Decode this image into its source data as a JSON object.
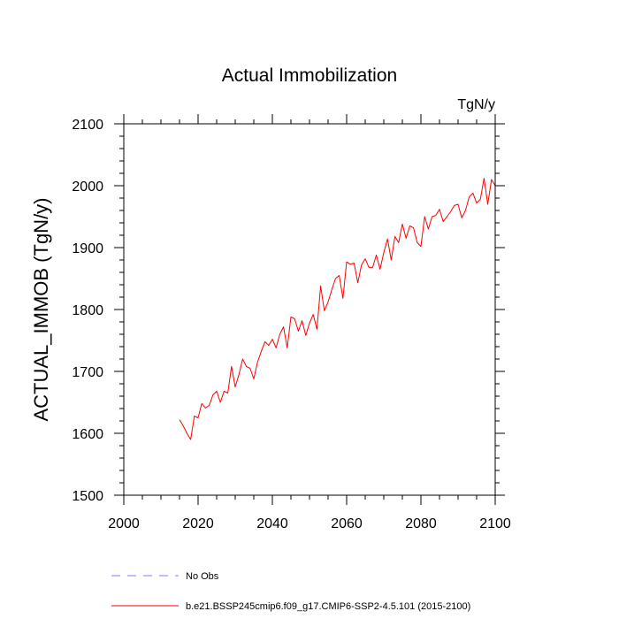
{
  "chart_data": {
    "type": "line",
    "title": "Actual Immobilization",
    "units": "TgN/y",
    "ylabel": "ACTUAL_IMMOB  (TgN/y)",
    "xlabel": "",
    "xlim": [
      2000,
      2100
    ],
    "ylim": [
      1500,
      2100
    ],
    "xticks": [
      2000,
      2020,
      2040,
      2060,
      2080,
      2100
    ],
    "yticks": [
      1500,
      1600,
      1700,
      1800,
      1900,
      2000,
      2100
    ],
    "xticklabels": [
      "2000",
      "2020",
      "2040",
      "2060",
      "2080",
      "2100"
    ],
    "yticklabels": [
      "1500",
      "1600",
      "1700",
      "1800",
      "1900",
      "2000",
      "2100"
    ],
    "grid": false,
    "series": [
      {
        "name": "b.e21.BSSP245cmip6.f09_g17.CMIP6-SSP2-4.5.101 (2015-2100)",
        "color": "#ff0000",
        "style": "solid",
        "x": [
          2015,
          2016,
          2017,
          2018,
          2019,
          2020,
          2021,
          2022,
          2023,
          2024,
          2025,
          2026,
          2027,
          2028,
          2029,
          2030,
          2031,
          2032,
          2033,
          2034,
          2035,
          2036,
          2037,
          2038,
          2039,
          2040,
          2041,
          2042,
          2043,
          2044,
          2045,
          2046,
          2047,
          2048,
          2049,
          2050,
          2051,
          2052,
          2053,
          2054,
          2055,
          2056,
          2057,
          2058,
          2059,
          2060,
          2061,
          2062,
          2063,
          2064,
          2065,
          2066,
          2067,
          2068,
          2069,
          2070,
          2071,
          2072,
          2073,
          2074,
          2075,
          2076,
          2077,
          2078,
          2079,
          2080,
          2081,
          2082,
          2083,
          2084,
          2085,
          2086,
          2087,
          2088,
          2089,
          2090,
          2091,
          2092,
          2093,
          2094,
          2095,
          2096,
          2097,
          2098,
          2099,
          2100
        ],
        "values": [
          1622,
          1612,
          1600,
          1590,
          1628,
          1625,
          1648,
          1641,
          1645,
          1662,
          1668,
          1650,
          1668,
          1665,
          1708,
          1675,
          1695,
          1720,
          1708,
          1705,
          1688,
          1715,
          1732,
          1748,
          1742,
          1752,
          1738,
          1760,
          1772,
          1738,
          1788,
          1785,
          1765,
          1782,
          1758,
          1778,
          1792,
          1768,
          1838,
          1798,
          1812,
          1832,
          1850,
          1855,
          1818,
          1877,
          1873,
          1875,
          1843,
          1872,
          1882,
          1868,
          1868,
          1888,
          1865,
          1892,
          1914,
          1880,
          1918,
          1908,
          1938,
          1915,
          1935,
          1932,
          1908,
          1902,
          1950,
          1930,
          1950,
          1952,
          1962,
          1942,
          1950,
          1958,
          1968,
          1970,
          1948,
          1960,
          1982,
          1988,
          1972,
          1978,
          2012,
          1970,
          2010,
          2000
        ]
      },
      {
        "name": "No Obs",
        "color": "#7f7fff",
        "style": "dashed",
        "x": [],
        "values": []
      }
    ]
  }
}
